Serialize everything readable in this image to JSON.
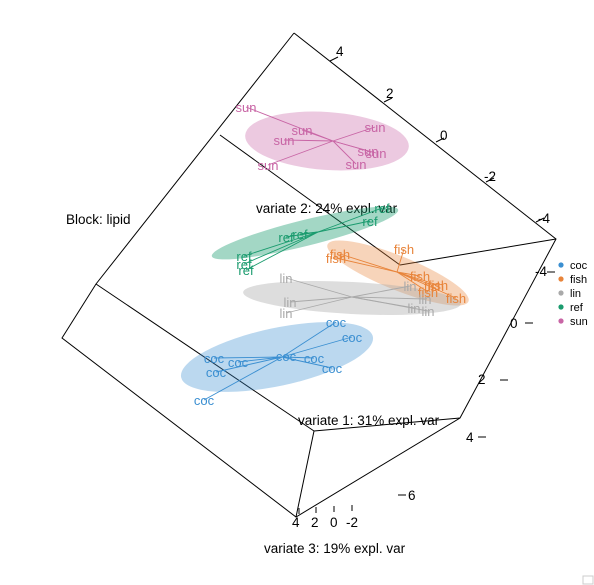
{
  "chart_data": {
    "type": "scatter",
    "subtype": "3d-ellipse",
    "block_label": "Block: lipid",
    "axes": {
      "x": {
        "label": "variate 1: 31% expl. var",
        "ticks": [
          "6",
          "4",
          "2",
          "0",
          "-2",
          "-4"
        ]
      },
      "y": {
        "label": "variate 2: 24% expl. var",
        "ticks": [
          "4",
          "2",
          "0",
          "-2",
          "-4"
        ]
      },
      "z": {
        "label": "variate 3: 19% expl. var",
        "ticks": [
          "4",
          "2",
          "0",
          "-2"
        ]
      }
    },
    "series": [
      {
        "name": "coc",
        "color": "#3b8fd1",
        "points": [
          "coc",
          "coc",
          "coc",
          "coc",
          "coc",
          "coc",
          "coc",
          "coc",
          "coc"
        ]
      },
      {
        "name": "fish",
        "color": "#e8843a",
        "points": [
          "fish",
          "fish",
          "fish",
          "fish",
          "fish",
          "fish",
          "fish",
          "fish"
        ]
      },
      {
        "name": "lin",
        "color": "#a9a9a9",
        "points": [
          "lin",
          "lin",
          "lin",
          "lin",
          "lin",
          "lin",
          "lin"
        ]
      },
      {
        "name": "ref",
        "color": "#1a9b6e",
        "points": [
          "ref",
          "ref",
          "ref",
          "ref",
          "ref",
          "ref",
          "ref"
        ]
      },
      {
        "name": "sun",
        "color": "#c865a5",
        "points": [
          "sun",
          "sun",
          "sun",
          "sun",
          "sun",
          "sun",
          "sun",
          "sun"
        ]
      }
    ],
    "legend_position": "right"
  }
}
